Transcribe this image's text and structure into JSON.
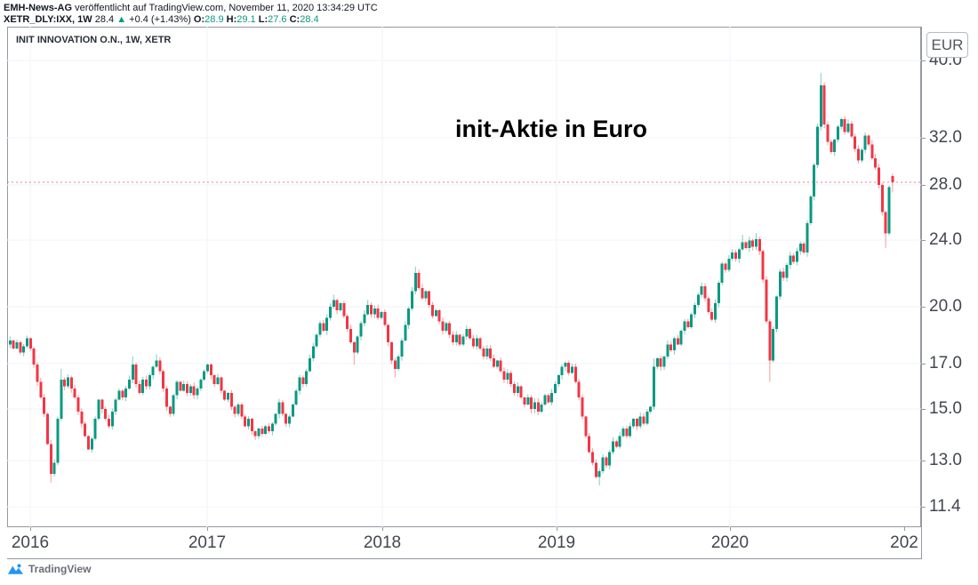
{
  "header": {
    "publisher": "EMH-News-AG",
    "line1_rest": " veröffentlicht auf TradingView.com, November 11, 2020 13:34:29 UTC",
    "symbol_line": {
      "symbol": "XETR_DLY:IXX, 1W",
      "last": "28.4",
      "arrow": "▲",
      "change": "+0.4 (+1.43%)",
      "o_label": "O:",
      "o_value": "28.9",
      "h_label": "H:",
      "h_value": "29.1",
      "l_label": "L:",
      "l_value": "27.6",
      "c_label": "C:",
      "c_value": "28.4"
    }
  },
  "chart": {
    "legend": "INIT INNOVATION O.N., 1W, XETR",
    "annotation_title": "init-Aktie in Euro",
    "currency_button": "EUR"
  },
  "footer": {
    "logo_text": "TradingView"
  },
  "colors": {
    "up": "#089981",
    "down": "#f23645",
    "wick_up": "rgba(8,153,129,0.5)",
    "wick_down": "rgba(242,54,69,0.5)",
    "grid": "#f0f3fa",
    "frame": "#9598a1",
    "axis_text": "#434651",
    "last_price_line": "rgba(242,54,69,0.65)",
    "logo_blue": "#2196f3"
  },
  "chart_data": {
    "type": "candlestick",
    "symbol": "INIT INNOVATION O.N.",
    "interval": "1W",
    "exchange": "XETR",
    "currency": "EUR",
    "scale": "log",
    "grid": true,
    "last_price": 28.4,
    "last_candle_ohlc": {
      "o": 28.9,
      "h": 29.1,
      "l": 27.6,
      "c": 28.4
    },
    "x_ticks": [
      {
        "label": "2016",
        "x": 34,
        "gridline": true
      },
      {
        "label": "2017",
        "x": 233,
        "gridline": true
      },
      {
        "label": "2018",
        "x": 430,
        "gridline": true
      },
      {
        "label": "2019",
        "x": 626,
        "gridline": true
      },
      {
        "label": "2020",
        "x": 821,
        "gridline": true
      },
      {
        "label": "202",
        "x": 1017,
        "gridline": false
      }
    ],
    "y_ticks": [
      {
        "label": "40.0",
        "price": 40.0,
        "y": 68
      },
      {
        "label": "32.0",
        "price": 32.0,
        "y": 155
      },
      {
        "label": "28.0",
        "price": 28.0,
        "y": 208
      },
      {
        "label": "24.0",
        "price": 24.0,
        "y": 270
      },
      {
        "label": "20.0",
        "price": 20.0,
        "y": 345
      },
      {
        "label": "17.0",
        "price": 17.0,
        "y": 409
      },
      {
        "label": "15.0",
        "price": 15.0,
        "y": 460
      },
      {
        "label": "13.0",
        "price": 13.0,
        "y": 518
      },
      {
        "label": "11.4",
        "price": 11.4,
        "y": 570
      }
    ],
    "x_layout": {
      "start": 11.3,
      "step": 3.832
    },
    "first_open": 18.0,
    "closes": [
      18.2,
      17.8,
      18.1,
      17.6,
      17.9,
      18.3,
      17.8,
      17.0,
      16.2,
      15.5,
      14.8,
      13.6,
      12.5,
      12.9,
      14.6,
      16.3,
      16.0,
      16.4,
      15.9,
      15.5,
      14.9,
      14.4,
      13.9,
      13.4,
      13.8,
      14.6,
      15.4,
      15.0,
      14.6,
      14.3,
      14.9,
      15.4,
      15.8,
      15.5,
      15.9,
      16.3,
      17.0,
      16.1,
      15.7,
      16.3,
      16.0,
      16.5,
      16.9,
      17.2,
      16.7,
      15.9,
      15.1,
      14.8,
      15.6,
      16.2,
      15.8,
      16.1,
      15.7,
      16.0,
      15.6,
      15.9,
      16.3,
      16.7,
      17.0,
      16.5,
      16.1,
      16.4,
      15.8,
      15.4,
      15.7,
      15.1,
      14.8,
      15.2,
      14.7,
      14.3,
      14.6,
      14.1,
      13.9,
      14.2,
      14.0,
      14.3,
      14.1,
      14.4,
      14.8,
      15.3,
      14.8,
      14.4,
      14.7,
      15.2,
      15.8,
      16.4,
      16.1,
      16.7,
      17.3,
      17.9,
      18.5,
      19.1,
      18.7,
      19.4,
      20.0,
      20.4,
      19.8,
      20.2,
      19.5,
      18.8,
      18.1,
      17.6,
      18.4,
      19.1,
      19.6,
      20.1,
      19.6,
      19.9,
      19.4,
      19.7,
      19.0,
      18.1,
      17.2,
      16.8,
      17.4,
      18.2,
      19.0,
      19.9,
      20.9,
      22.0,
      21.1,
      20.5,
      20.9,
      20.1,
      19.5,
      19.8,
      19.2,
      18.7,
      19.1,
      18.5,
      18.1,
      18.5,
      18.0,
      18.4,
      18.8,
      18.3,
      17.9,
      18.3,
      17.8,
      17.4,
      17.8,
      17.3,
      16.9,
      17.2,
      16.7,
      16.3,
      16.6,
      16.1,
      15.7,
      16.0,
      15.5,
      15.2,
      15.5,
      15.0,
      15.3,
      14.9,
      15.2,
      15.6,
      15.3,
      15.7,
      16.1,
      16.5,
      16.9,
      17.1,
      16.6,
      16.9,
      16.2,
      15.5,
      14.7,
      13.9,
      13.3,
      12.9,
      12.4,
      12.6,
      13.1,
      12.8,
      13.3,
      13.7,
      13.5,
      13.9,
      14.2,
      13.9,
      14.3,
      14.6,
      14.3,
      14.7,
      14.4,
      14.9,
      15.1,
      16.9,
      17.3,
      16.9,
      17.4,
      18.0,
      17.7,
      18.3,
      18.0,
      18.7,
      19.2,
      18.9,
      19.6,
      20.1,
      20.7,
      21.2,
      20.5,
      19.7,
      19.3,
      20.2,
      21.4,
      22.6,
      22.2,
      22.9,
      23.3,
      22.9,
      23.5,
      24.0,
      23.6,
      24.1,
      23.7,
      24.2,
      23.4,
      21.6,
      19.2,
      17.2,
      18.8,
      20.6,
      22.1,
      21.7,
      22.5,
      23.1,
      22.7,
      23.4,
      23.9,
      23.3,
      25.3,
      27.3,
      29.8,
      33.2,
      37.3,
      33.4,
      31.8,
      30.9,
      32.0,
      33.2,
      33.9,
      32.7,
      33.5,
      32.3,
      31.2,
      30.2,
      31.1,
      32.4,
      31.6,
      30.4,
      29.6,
      28.2,
      26.1,
      24.6,
      28.0,
      28.4
    ],
    "wick_overrides": {
      "12": {
        "l": 12.2
      },
      "15": {
        "h": 16.8
      },
      "36": {
        "h": 17.4
      },
      "43": {
        "h": 17.5
      },
      "95": {
        "h": 20.7
      },
      "101": {
        "l": 17.0
      },
      "105": {
        "h": 20.4
      },
      "113": {
        "l": 16.4
      },
      "119": {
        "h": 22.4
      },
      "173": {
        "l": 12.1
      },
      "189": {
        "h": 17.3
      },
      "215": {
        "h": 24.5
      },
      "219": {
        "h": 24.6
      },
      "223": {
        "l": 16.2
      },
      "238": {
        "h": 38.6
      },
      "257": {
        "l": 23.6
      }
    }
  }
}
